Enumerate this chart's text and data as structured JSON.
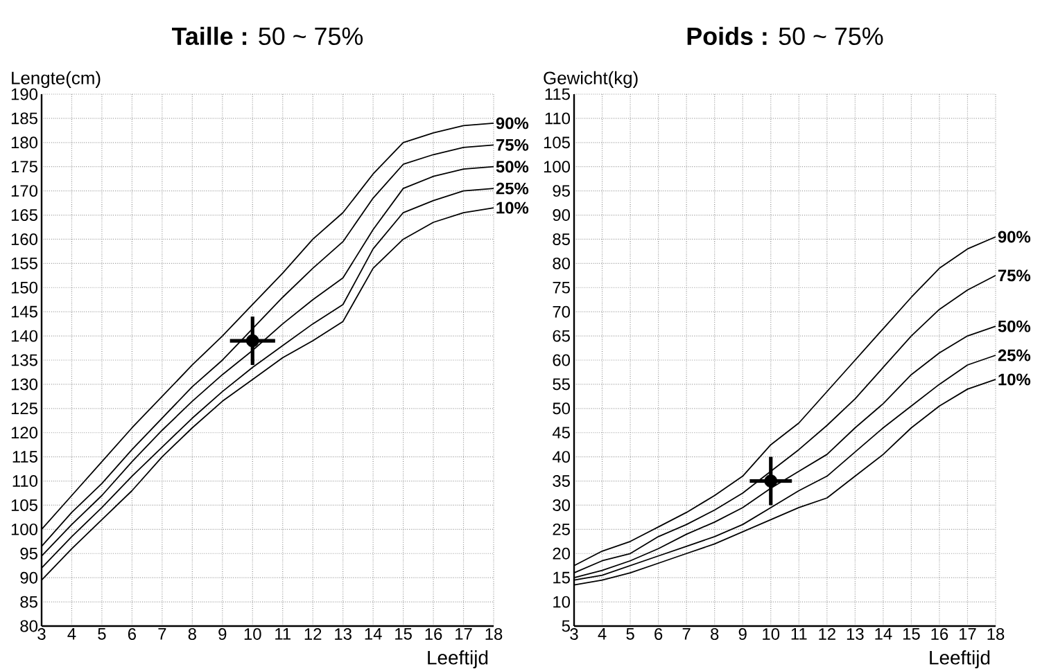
{
  "chart_data": [
    {
      "type": "line",
      "title": "**Taille :** 50 ~ 75%",
      "xlabel": "Leeftijd",
      "ylabel": "Lengte(cm)",
      "grid": true,
      "x": [
        3,
        4,
        5,
        6,
        7,
        8,
        9,
        10,
        11,
        12,
        13,
        14,
        15,
        16,
        17,
        18
      ],
      "xlim": [
        3,
        18
      ],
      "xticks": [
        3,
        4,
        5,
        6,
        7,
        8,
        9,
        10,
        11,
        12,
        13,
        14,
        15,
        16,
        17,
        18
      ],
      "ylim": [
        80,
        190
      ],
      "yticks": [
        80,
        85,
        90,
        95,
        100,
        105,
        110,
        115,
        120,
        125,
        130,
        135,
        140,
        145,
        150,
        155,
        160,
        165,
        170,
        175,
        180,
        185,
        190
      ],
      "series": [
        {
          "name": "90%",
          "color": "#000000",
          "values": [
            100,
            107,
            114,
            121,
            127.5,
            134,
            140,
            146.5,
            153,
            160,
            165.5,
            173.5,
            180,
            182,
            183.5,
            184
          ]
        },
        {
          "name": "75%",
          "color": "#000000",
          "values": [
            96.5,
            103.5,
            109.5,
            116.5,
            123,
            129.5,
            135,
            141.5,
            148,
            154,
            159.5,
            168.5,
            175.5,
            177.5,
            179,
            179.5
          ]
        },
        {
          "name": "50%",
          "color": "#000000",
          "values": [
            94.5,
            101,
            107,
            114,
            120.5,
            126.5,
            132,
            137,
            142.5,
            147.5,
            152,
            162,
            170.5,
            173,
            174.5,
            175
          ]
        },
        {
          "name": "25%",
          "color": "#000000",
          "values": [
            92,
            98.5,
            104.5,
            111,
            117,
            123,
            128.5,
            133.5,
            138,
            142.5,
            146.5,
            158,
            165.5,
            168,
            170,
            170.5
          ]
        },
        {
          "name": "10%",
          "color": "#000000",
          "values": [
            89.5,
            96,
            102,
            108,
            115,
            121,
            126.5,
            131,
            135.5,
            139,
            143,
            154,
            160,
            163.5,
            165.5,
            166.5
          ]
        },
        {
          "type": "scatter",
          "marker": "circle",
          "color": "#000000",
          "x": [
            10
          ],
          "values": [
            139
          ],
          "errors": [
            5
          ],
          "xerrors": [
            0.75
          ]
        }
      ]
    },
    {
      "type": "line",
      "title": "**Poids :** 50 ~ 75%",
      "xlabel": "Leeftijd",
      "ylabel": "Gewicht(kg)",
      "grid": true,
      "x": [
        3,
        4,
        5,
        6,
        7,
        8,
        9,
        10,
        11,
        12,
        13,
        14,
        15,
        16,
        17,
        18
      ],
      "xlim": [
        3,
        18
      ],
      "xticks": [
        3,
        4,
        5,
        6,
        7,
        8,
        9,
        10,
        11,
        12,
        13,
        14,
        15,
        16,
        17,
        18
      ],
      "ylim": [
        5,
        115
      ],
      "yticks": [
        5,
        10,
        15,
        20,
        25,
        30,
        35,
        40,
        45,
        50,
        55,
        60,
        65,
        70,
        75,
        80,
        85,
        90,
        95,
        100,
        105,
        110,
        115
      ],
      "series": [
        {
          "name": "90%",
          "color": "#000000",
          "values": [
            17.5,
            20.5,
            22.5,
            25.5,
            28.5,
            32,
            36,
            42.5,
            47,
            53.5,
            60,
            66.5,
            73,
            79,
            83,
            85.5
          ]
        },
        {
          "name": "75%",
          "color": "#000000",
          "values": [
            16,
            18.5,
            20,
            23.5,
            26,
            29,
            32.5,
            37,
            41.5,
            46.5,
            52,
            58.5,
            65,
            70.5,
            74.5,
            77.5
          ]
        },
        {
          "name": "50%",
          "color": "#000000",
          "values": [
            15,
            16.5,
            18.5,
            21,
            24,
            26.5,
            29.5,
            33.5,
            37,
            40.5,
            46,
            51,
            57,
            61.5,
            65,
            67
          ]
        },
        {
          "name": "25%",
          "color": "#000000",
          "values": [
            14.5,
            15.5,
            17.5,
            19.5,
            21.5,
            23.5,
            26,
            29.5,
            33,
            36,
            41,
            46,
            50.5,
            55,
            59,
            61
          ]
        },
        {
          "name": "10%",
          "color": "#000000",
          "values": [
            13.5,
            14.5,
            16,
            18,
            20,
            22,
            24.5,
            27,
            29.5,
            31.5,
            36,
            40.5,
            46,
            50.5,
            54,
            56
          ]
        },
        {
          "type": "scatter",
          "marker": "circle",
          "color": "#000000",
          "x": [
            10
          ],
          "values": [
            35
          ],
          "errors": [
            5
          ],
          "xerrors": [
            0.75
          ]
        }
      ]
    }
  ]
}
